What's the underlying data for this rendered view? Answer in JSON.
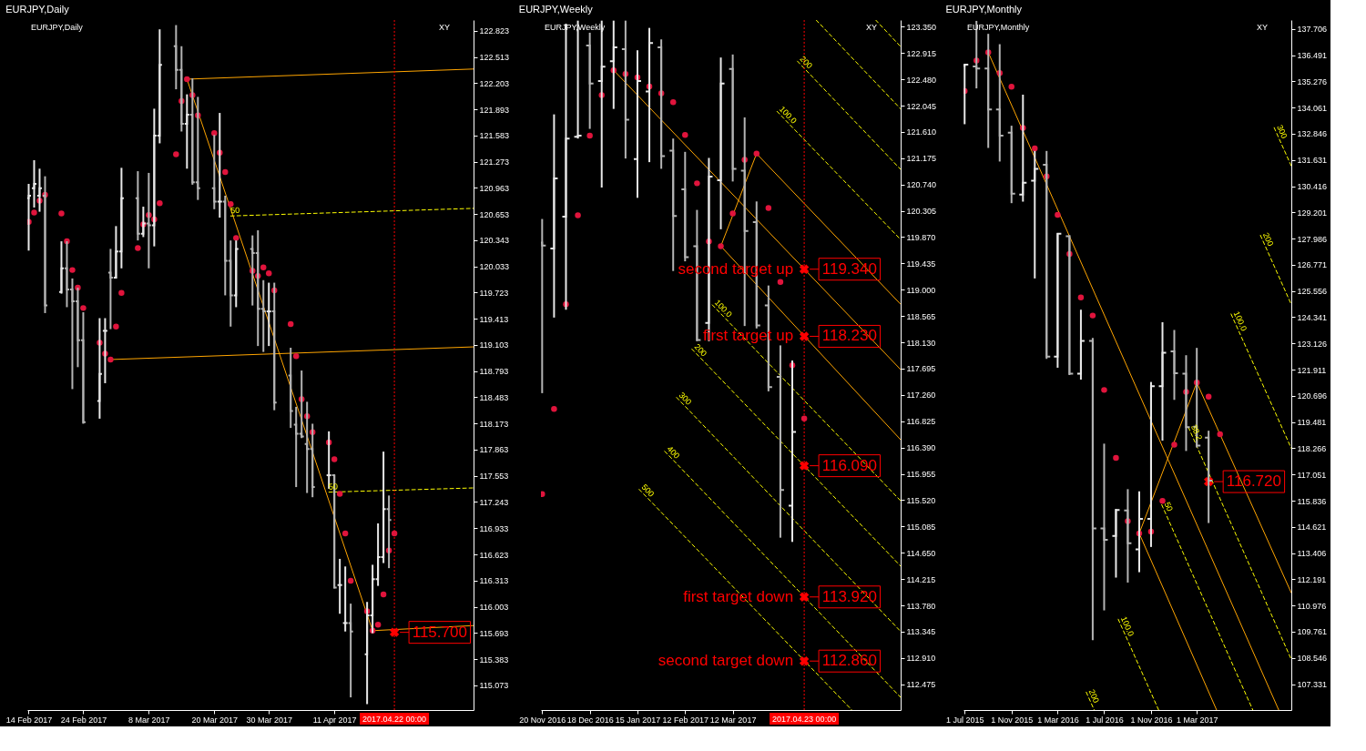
{
  "chart_data": [
    {
      "type": "candlestick",
      "title": "EURJPY,Daily",
      "colors": [
        "#e8e8e8",
        "#e8e8e8",
        "#e8e8e8",
        "#b4b4b4",
        "#e8e8e8",
        "#b4b4b4",
        "#b4b4b4",
        "#b4b4b4",
        "#b4b4b4",
        "#e8e8e8",
        "#e8e8e8",
        "#b4b4b4",
        "#e8e8e8",
        "#e8e8e8",
        "#b4b4b4",
        "#e8e8e8",
        "#b4b4b4",
        "#e8e8e8",
        "#e8e8e8",
        "#b4b4b4",
        "#b4b4b4",
        "#e8e8e8",
        "#b4b4b4",
        "#b4b4b4",
        "#b4b4b4",
        "#e8e8e8",
        "#b4b4b4",
        "#b4b4b4",
        "#e8e8e8",
        "#b4b4b4",
        "#b4b4b4",
        "#b4b4b4",
        "#e8e8e8",
        "#b4b4b4",
        "#b4b4b4",
        "#b4b4b4",
        "#b4b4b4",
        "#b4b4b4",
        "#b4b4b4",
        "#e8e8e8",
        "#b4b4b4",
        "#e8e8e8",
        "#e8e8e8",
        "#b4b4b4",
        "#e8e8e8",
        "#e8e8e8",
        "#e8e8e8",
        "#e8e8e8",
        "#b4b4b4"
      ],
      "x": [
        "2017-02-14",
        "2017-02-15",
        "2017-02-16",
        "2017-02-17",
        "2017-02-20",
        "2017-02-21",
        "2017-02-22",
        "2017-02-23",
        "2017-02-24",
        "2017-02-27",
        "2017-02-28",
        "2017-03-01",
        "2017-03-02",
        "2017-03-03",
        "2017-03-06",
        "2017-03-07",
        "2017-03-08",
        "2017-03-09",
        "2017-03-10",
        "2017-03-13",
        "2017-03-14",
        "2017-03-15",
        "2017-03-16",
        "2017-03-17",
        "2017-03-20",
        "2017-03-21",
        "2017-03-22",
        "2017-03-23",
        "2017-03-24",
        "2017-03-27",
        "2017-03-28",
        "2017-03-29",
        "2017-03-30",
        "2017-03-31",
        "2017-04-03",
        "2017-04-04",
        "2017-04-05",
        "2017-04-06",
        "2017-04-07",
        "2017-04-10",
        "2017-04-11",
        "2017-04-12",
        "2017-04-13",
        "2017-04-14",
        "2017-04-17",
        "2017-04-18",
        "2017-04-19",
        "2017-04-20",
        "2017-04-21"
      ],
      "ohlc": [
        [
          120.84,
          121.01,
          120.22,
          120.87
        ],
        [
          120.96,
          121.29,
          120.73,
          121.01
        ],
        [
          120.87,
          121.19,
          120.68,
          120.96
        ],
        [
          120.87,
          121.1,
          119.48,
          119.57
        ],
        [
          119.73,
          120.33,
          119.71,
          120.01
        ],
        [
          120.01,
          120.33,
          119.55,
          119.76
        ],
        [
          119.76,
          119.89,
          118.58,
          119.62
        ],
        [
          119.62,
          119.78,
          118.84,
          119.16
        ],
        [
          119.16,
          119.49,
          118.17,
          118.19
        ],
        [
          118.44,
          119.42,
          118.23,
          118.76
        ],
        [
          119.27,
          119.42,
          118.65,
          119.27
        ],
        [
          119.96,
          120.24,
          119.29,
          119.9
        ],
        [
          119.9,
          120.51,
          119.89,
          120.21
        ],
        [
          120.21,
          121.2,
          120.01,
          120.84
        ],
        [
          120.84,
          121.16,
          120.34,
          120.42
        ],
        [
          120.42,
          120.74,
          120.38,
          120.54
        ],
        [
          120.54,
          121.14,
          120.01,
          120.52
        ],
        [
          120.52,
          121.9,
          120.27,
          121.58
        ],
        [
          121.58,
          122.84,
          121.49,
          122.42
        ],
        [
          122.64,
          122.89,
          122.13,
          122.36
        ],
        [
          122.36,
          122.64,
          121.63,
          121.72
        ],
        [
          121.72,
          122.07,
          121.19,
          121.83
        ],
        [
          121.83,
          122.26,
          121.0,
          121.03
        ],
        [
          121.03,
          122.04,
          120.82,
          120.96
        ],
        [
          120.96,
          121.59,
          120.71,
          120.8
        ],
        [
          120.8,
          121.85,
          120.61,
          120.8
        ],
        [
          120.8,
          120.87,
          119.69,
          120.1
        ],
        [
          120.1,
          120.34,
          119.32,
          119.69
        ],
        [
          119.69,
          120.34,
          119.55,
          120.24
        ],
        [
          120.24,
          120.4,
          119.57,
          120.19
        ],
        [
          120.19,
          120.46,
          119.09,
          119.53
        ],
        [
          119.53,
          119.87,
          119.02,
          119.5
        ],
        [
          119.5,
          119.84,
          119.09,
          119.5
        ],
        [
          119.5,
          119.84,
          118.33,
          118.42
        ],
        [
          118.74,
          119.07,
          118.12,
          118.32
        ],
        [
          118.16,
          118.37,
          117.42,
          118.05
        ],
        [
          118.05,
          118.8,
          118.0,
          118.02
        ],
        [
          117.93,
          118.43,
          117.35,
          117.87
        ],
        [
          117.87,
          118.17,
          117.3,
          117.42
        ],
        [
          117.56,
          118.08,
          117.4,
          117.56
        ],
        [
          117.56,
          117.56,
          116.22,
          116.23
        ],
        [
          116.26,
          116.57,
          115.92,
          116.26
        ],
        [
          115.81,
          116.48,
          115.71,
          115.81
        ],
        [
          115.81,
          116.04,
          114.93,
          115.71
        ],
        [
          115.44,
          116.06,
          114.85,
          115.9
        ],
        [
          115.9,
          116.5,
          115.69,
          116.33
        ],
        [
          116.33,
          116.99,
          116.25,
          116.59
        ],
        [
          116.59,
          117.84,
          116.52,
          117.16
        ],
        [
          117.16,
          117.32,
          116.46,
          117.03
        ]
      ],
      "xlim": [
        "2017-02-13T18:00",
        "2017-05-06T12:00"
      ],
      "xticks": [
        {
          "value": "2017-02-14",
          "label": "14 Feb 2017"
        },
        {
          "value": "2017-02-24",
          "label": "24 Feb 2017"
        },
        {
          "value": "2017-03-08",
          "label": "8 Mar 2017"
        },
        {
          "value": "2017-03-20",
          "label": "20 Mar 2017"
        },
        {
          "value": "2017-03-30",
          "label": "30 Mar 2017"
        },
        {
          "value": "2017-04-11",
          "label": "11 Apr 2017"
        }
      ],
      "ylim": [
        114.78,
        122.95
      ],
      "yticks": [
        122.823,
        122.513,
        122.203,
        121.893,
        121.583,
        121.273,
        120.963,
        120.653,
        120.343,
        120.033,
        119.723,
        119.413,
        119.103,
        118.793,
        118.483,
        118.173,
        117.863,
        117.553,
        117.243,
        116.933,
        116.623,
        116.313,
        116.003,
        115.693,
        115.383,
        115.073
      ],
      "series": [
        {
          "type": "line",
          "color": "#ffa500",
          "x": [
            "2017-03-15",
            "2017-05-06T12:00"
          ],
          "values": [
            122.25,
            122.37
          ]
        },
        {
          "type": "line",
          "color": "#ffa500",
          "x": [
            "2017-03-01",
            "2017-05-06T12:00"
          ],
          "values": [
            118.93,
            119.08
          ]
        },
        {
          "type": "line",
          "color": "#ffa500",
          "x": [
            "2017-03-15",
            "2017-04-18"
          ],
          "values": [
            122.25,
            115.72
          ]
        },
        {
          "type": "line",
          "color": "#ffa500",
          "x": [
            "2017-04-18",
            "2017-05-06T12:00"
          ],
          "values": [
            115.72,
            115.78
          ]
        },
        {
          "type": "line",
          "color": "#ffff00",
          "line_style": "dashed",
          "name": "50",
          "x": [
            "2017-03-23",
            "2017-05-06T12:00"
          ],
          "values": [
            120.63,
            120.72
          ]
        },
        {
          "type": "line",
          "color": "#ffff00",
          "line_style": "dashed",
          "name": "50",
          "x": [
            "2017-04-10",
            "2017-05-06T12:00"
          ],
          "values": [
            117.36,
            117.41
          ]
        },
        {
          "type": "scatter",
          "color": "#e0143c",
          "marker": "circle",
          "x": [
            "2017-02-14",
            "2017-02-15",
            "2017-02-16",
            "2017-02-17",
            "2017-02-20",
            "2017-02-21",
            "2017-02-22",
            "2017-02-23",
            "2017-02-24",
            "2017-02-27",
            "2017-02-28",
            "2017-03-01",
            "2017-03-02",
            "2017-03-03",
            "2017-03-06",
            "2017-03-07",
            "2017-03-08",
            "2017-03-09",
            "2017-03-10",
            "2017-03-13",
            "2017-03-14",
            "2017-03-15",
            "2017-03-16",
            "2017-03-17",
            "2017-03-20",
            "2017-03-21",
            "2017-03-22",
            "2017-03-23",
            "2017-03-24",
            "2017-03-27",
            "2017-03-28",
            "2017-03-29",
            "2017-03-30",
            "2017-03-31",
            "2017-04-03",
            "2017-04-04",
            "2017-04-05",
            "2017-04-06",
            "2017-04-07",
            "2017-04-10",
            "2017-04-11",
            "2017-04-12",
            "2017-04-13",
            "2017-04-14",
            "2017-04-17",
            "2017-04-18",
            "2017-04-19",
            "2017-04-20",
            "2017-04-21",
            "2017-04-22"
          ],
          "values": [
            120.56,
            120.67,
            120.81,
            120.88,
            120.66,
            120.33,
            119.99,
            119.78,
            119.54,
            119.13,
            119.0,
            118.93,
            119.32,
            119.72,
            120.25,
            120.53,
            120.64,
            120.59,
            120.78,
            121.36,
            121.99,
            122.25,
            122.06,
            121.82,
            121.61,
            121.38,
            121.15,
            120.77,
            120.37,
            119.98,
            119.92,
            120.02,
            119.95,
            119.75,
            119.35,
            118.97,
            118.46,
            118.26,
            118.07,
            117.95,
            117.75,
            117.34,
            116.87,
            116.31,
            115.95,
            115.72,
            115.79,
            116.15,
            116.67,
            116.87
          ]
        },
        {
          "type": "scatter",
          "color": "#ff0000",
          "marker": "cross",
          "x": [
            "2017-04-22"
          ],
          "values": [
            115.7
          ],
          "value_labels": [
            "115.700"
          ]
        }
      ],
      "ref_lines": [
        {
          "axis": "x",
          "value": "2017-04-22",
          "label": "2017.04.22 00:00",
          "color": "#ff0000",
          "line_style": "dotted"
        }
      ],
      "annotations": [
        "EURJPY,Daily",
        "XY"
      ]
    },
    {
      "type": "candlestick",
      "title": "EURJPY,Weekly",
      "colors": [
        "#b4b4b4",
        "#e8e8e8",
        "#e8e8e8",
        "#e8e8e8",
        "#b4b4b4",
        "#e8e8e8",
        "#e8e8e8",
        "#b4b4b4",
        "#e8e8e8",
        "#e8e8e8",
        "#b4b4b4",
        "#b4b4b4",
        "#b4b4b4",
        "#b4b4b4",
        "#e8e8e8",
        "#e8e8e8",
        "#b4b4b4",
        "#b4b4b4",
        "#b4b4b4",
        "#b4b4b4",
        "#b4b4b4",
        "#e8e8e8"
      ],
      "x": [
        "2016-11-20",
        "2016-11-27",
        "2016-12-04",
        "2016-12-11",
        "2016-12-18",
        "2016-12-25",
        "2017-01-01",
        "2017-01-08",
        "2017-01-15",
        "2017-01-22",
        "2017-01-29",
        "2017-02-05",
        "2017-02-12",
        "2017-02-19",
        "2017-02-26",
        "2017-03-05",
        "2017-03-12",
        "2017-03-19",
        "2017-03-26",
        "2017-04-02",
        "2017-04-09",
        "2017-04-16"
      ],
      "ohlc": [
        [
          119.78,
          120.17,
          117.29,
          119.73
        ],
        [
          119.68,
          121.9,
          118.54,
          120.84
        ],
        [
          120.21,
          123.4,
          118.67,
          121.5
        ],
        [
          121.53,
          123.45,
          121.5,
          121.55
        ],
        [
          123.04,
          123.25,
          121.66,
          122.41
        ],
        [
          122.45,
          123.45,
          120.69,
          122.69
        ],
        [
          122.78,
          123.45,
          121.99,
          123.01
        ],
        [
          122.98,
          123.45,
          121.17,
          121.81
        ],
        [
          121.16,
          122.96,
          120.52,
          122.45
        ],
        [
          122.28,
          123.33,
          121.11,
          123.08
        ],
        [
          123.01,
          123.14,
          121.0,
          121.21
        ],
        [
          121.3,
          121.5,
          119.31,
          120.22
        ],
        [
          120.66,
          121.28,
          119.47,
          119.54
        ],
        [
          119.72,
          120.32,
          118.15,
          118.17
        ],
        [
          118.45,
          121.18,
          118.15,
          120.87
        ],
        [
          120.81,
          122.84,
          120.0,
          122.41
        ],
        [
          122.65,
          122.89,
          120.79,
          121.0
        ],
        [
          120.97,
          121.85,
          118.4,
          119.97
        ],
        [
          120.12,
          120.46,
          118.36,
          118.41
        ],
        [
          118.74,
          119.07,
          117.32,
          117.39
        ],
        [
          117.56,
          118.08,
          114.9,
          115.69
        ],
        [
          115.43,
          117.83,
          114.83,
          116.65
        ]
      ],
      "xlim": [
        "2016-11-19T07:00",
        "2017-06-18T16:00"
      ],
      "xticks": [
        {
          "value": "2016-11-20",
          "label": "20 Nov 2016"
        },
        {
          "value": "2016-12-18",
          "label": "18 Dec 2016"
        },
        {
          "value": "2017-01-15",
          "label": "15 Jan 2017"
        },
        {
          "value": "2017-02-12",
          "label": "12 Feb 2017"
        },
        {
          "value": "2017-03-12",
          "label": "12 Mar 2017"
        }
      ],
      "ylim": [
        112.05,
        123.46
      ],
      "yticks": [
        {
          "value": 123.35,
          "label": "123.350"
        },
        122.915,
        {
          "value": 122.48,
          "label": "122.480"
        },
        122.045,
        {
          "value": 121.61,
          "label": "121.610"
        },
        121.175,
        {
          "value": 120.74,
          "label": "120.740"
        },
        120.305,
        {
          "value": 119.87,
          "label": "119.870"
        },
        119.435,
        {
          "value": 119,
          "label": "119.000"
        },
        118.565,
        {
          "value": 118.13,
          "label": "118.130"
        },
        117.695,
        {
          "value": 117.26,
          "label": "117.260"
        },
        116.825,
        {
          "value": 116.39,
          "label": "116.390"
        },
        115.955,
        {
          "value": 115.52,
          "label": "115.520"
        },
        115.085,
        {
          "value": 114.65,
          "label": "114.650"
        },
        114.215,
        {
          "value": 113.78,
          "label": "113.780"
        },
        113.345,
        {
          "value": 112.91,
          "label": "112.910"
        },
        112.475
      ],
      "series": [
        {
          "type": "line",
          "color": "#ffa500",
          "x": [
            "2017-01-01",
            "2017-06-18T16:00"
          ],
          "values": [
            122.63,
            117.68
          ]
        },
        {
          "type": "line",
          "color": "#ffa500",
          "x": [
            "2017-03-26",
            "2017-06-18T16:00"
          ],
          "values": [
            121.25,
            118.76
          ]
        },
        {
          "type": "line",
          "color": "#ffa500",
          "x": [
            "2017-03-05",
            "2017-06-18T16:00"
          ],
          "values": [
            119.72,
            116.52
          ]
        },
        {
          "type": "line",
          "color": "#ffa500",
          "x": [
            "2017-03-05",
            "2017-03-26"
          ],
          "values": [
            119.72,
            121.25
          ]
        },
        {
          "type": "line",
          "color": "#ffff00",
          "line_style": "dashed",
          "name": "200",
          "x": [
            "2017-04-19",
            "2017-06-18T16:00"
          ],
          "values": [
            122.78,
            120.99
          ]
        },
        {
          "type": "line",
          "color": "#ffff00",
          "line_style": "dashed",
          "name": "100.0",
          "x": [
            "2017-04-07",
            "2017-06-18T16:00"
          ],
          "values": [
            121.95,
            119.83
          ]
        },
        {
          "type": "line",
          "color": "#ffff00",
          "line_style": "dashed",
          "x": [
            "2017-04-30",
            "2017-06-18T16:00"
          ],
          "values": [
            123.46,
            121.99
          ]
        },
        {
          "type": "line",
          "color": "#ffff00",
          "line_style": "dashed",
          "x": [
            "2017-06-04",
            "2017-06-18T16:00"
          ],
          "values": [
            123.46,
            123.02
          ]
        },
        {
          "type": "line",
          "color": "#ffff00",
          "line_style": "dashed",
          "name": "100.0",
          "x": [
            "2017-02-28",
            "2017-06-18T16:00"
          ],
          "values": [
            118.75,
            115.51
          ]
        },
        {
          "type": "line",
          "color": "#ffff00",
          "line_style": "dashed",
          "name": "200",
          "x": [
            "2017-02-16",
            "2017-06-18T16:00"
          ],
          "values": [
            118.02,
            114.43
          ]
        },
        {
          "type": "line",
          "color": "#ffff00",
          "line_style": "dashed",
          "name": "300",
          "x": [
            "2017-02-07",
            "2017-06-18T16:00"
          ],
          "values": [
            117.22,
            113.35
          ]
        },
        {
          "type": "line",
          "color": "#ffff00",
          "line_style": "dashed",
          "name": "400",
          "x": [
            "2017-01-31",
            "2017-06-18T16:00"
          ],
          "values": [
            116.33,
            112.26
          ]
        },
        {
          "type": "line",
          "color": "#ffff00",
          "line_style": "dashed",
          "name": "500",
          "x": [
            "2017-01-16",
            "2017-05-21"
          ],
          "values": [
            115.7,
            112.05
          ]
        },
        {
          "type": "scatter",
          "color": "#e0143c",
          "marker": "circle",
          "x": [
            "2016-11-20",
            "2016-11-27",
            "2016-12-04",
            "2016-12-11",
            "2016-12-18",
            "2016-12-25",
            "2017-01-01",
            "2017-01-08",
            "2017-01-15",
            "2017-01-22",
            "2017-01-29",
            "2017-02-05",
            "2017-02-12",
            "2017-02-19",
            "2017-02-26",
            "2017-03-05",
            "2017-03-12",
            "2017-03-19",
            "2017-03-26",
            "2017-04-02",
            "2017-04-09",
            "2017-04-16",
            "2017-04-23"
          ],
          "values": [
            115.62,
            117.03,
            118.76,
            120.23,
            121.55,
            122.22,
            122.63,
            122.57,
            122.51,
            122.36,
            122.25,
            122.1,
            121.56,
            120.76,
            119.8,
            119.72,
            120.26,
            121.15,
            121.25,
            120.35,
            119.13,
            117.75,
            116.87
          ]
        },
        {
          "type": "scatter",
          "color": "#ff0000",
          "marker": "cross",
          "x": [
            "2017-04-23",
            "2017-04-23",
            "2017-04-23",
            "2017-04-23",
            "2017-04-23"
          ],
          "values": [
            119.34,
            118.23,
            116.09,
            113.92,
            112.86
          ],
          "value_labels": [
            "119.340",
            "118.230",
            "116.090",
            "113.920",
            "112.860"
          ]
        }
      ],
      "ref_lines": [
        {
          "axis": "x",
          "value": "2017-04-23",
          "label": "2017.04.23 00:00",
          "color": "#ff0000",
          "line_style": "dotted"
        }
      ],
      "annotations": [
        "EURJPY,Weekly",
        "XY",
        {
          "text": "second target up",
          "x": "2017-04-23",
          "y": 119.34
        },
        {
          "text": "first target up",
          "x": "2017-04-23",
          "y": 118.23
        },
        {
          "text": "first target down",
          "x": "2017-04-23",
          "y": 113.92
        },
        {
          "text": "second target down",
          "x": "2017-04-23",
          "y": 112.86
        }
      ]
    },
    {
      "type": "candlestick",
      "title": "EURJPY,Monthly",
      "colors": [
        "#e8e8e8",
        "#b4b4b4",
        "#b4b4b4",
        "#b4b4b4",
        "#b4b4b4",
        "#e8e8e8",
        "#e8e8e8",
        "#b4b4b4",
        "#e8e8e8",
        "#b4b4b4",
        "#e8e8e8",
        "#b4b4b4",
        "#b4b4b4",
        "#e8e8e8",
        "#b4b4b4",
        "#e8e8e8",
        "#e8e8e8",
        "#e8e8e8",
        "#b4b4b4",
        "#b4b4b4",
        "#b4b4b4",
        "#b4b4b4"
      ],
      "x": [
        "2015-07-01",
        "2015-08-01",
        "2015-09-01",
        "2015-10-01",
        "2015-11-01",
        "2015-12-01",
        "2016-01-01",
        "2016-02-01",
        "2016-03-01",
        "2016-04-01",
        "2016-05-01",
        "2016-06-01",
        "2016-07-01",
        "2016-08-01",
        "2016-09-01",
        "2016-10-01",
        "2016-11-01",
        "2016-12-01",
        "2017-01-01",
        "2017-02-01",
        "2017-03-01",
        "2017-04-01"
      ],
      "ohlc": [
        [
          136.0,
          136.08,
          133.29,
          136.05
        ],
        [
          135.97,
          138.08,
          134.95,
          135.87
        ],
        [
          135.87,
          137.48,
          132.19,
          133.97
        ],
        [
          133.97,
          137.0,
          131.56,
          132.76
        ],
        [
          132.9,
          133.22,
          129.63,
          130.07
        ],
        [
          130.03,
          134.66,
          129.7,
          130.58
        ],
        [
          130.67,
          132.05,
          126.14,
          131.22
        ],
        [
          131.41,
          132.05,
          122.41,
          122.52
        ],
        [
          122.52,
          128.24,
          122.0,
          128.21
        ],
        [
          128.1,
          128.14,
          121.66,
          121.72
        ],
        [
          121.72,
          124.69,
          121.45,
          123.24
        ],
        [
          123.24,
          123.38,
          109.37,
          114.55
        ],
        [
          114.55,
          118.48,
          110.75,
          114.02
        ],
        [
          114.2,
          115.45,
          112.27,
          115.4
        ],
        [
          115.38,
          116.37,
          112.04,
          113.86
        ],
        [
          113.58,
          116.27,
          112.52,
          114.99
        ],
        [
          114.99,
          121.34,
          113.69,
          121.14
        ],
        [
          121.14,
          124.11,
          118.62,
          122.69
        ],
        [
          122.76,
          123.75,
          120.51,
          121.75
        ],
        [
          121.72,
          122.58,
          118.14,
          119.24
        ],
        [
          119.27,
          122.92,
          118.3,
          118.39
        ],
        [
          118.76,
          119.08,
          114.8,
          116.76
        ]
      ],
      "xlim": [
        "2015-06-28",
        "2017-11-04"
      ],
      "xticks": [
        {
          "value": "2015-07-01",
          "label": "1 Jul 2015"
        },
        {
          "value": "2015-11-01",
          "label": "1 Nov 2015"
        },
        {
          "value": "2016-03-01",
          "label": "1 Mar 2016"
        },
        {
          "value": "2016-07-01",
          "label": "1 Jul 2016"
        },
        {
          "value": "2016-11-01",
          "label": "1 Nov 2016"
        },
        {
          "value": "2017-03-01",
          "label": "1 Mar 2017"
        }
      ],
      "ylim": [
        106.13,
        138.12
      ],
      "yticks": [
        137.706,
        136.491,
        135.276,
        134.061,
        132.846,
        131.631,
        130.416,
        129.201,
        127.986,
        126.771,
        125.556,
        124.341,
        123.126,
        121.911,
        120.696,
        119.481,
        118.266,
        117.051,
        115.836,
        114.621,
        113.406,
        112.191,
        110.976,
        109.761,
        108.546,
        107.331
      ],
      "series": [
        {
          "type": "line",
          "color": "#ffa500",
          "x": [
            "2015-09-01",
            "2017-10-02"
          ],
          "values": [
            136.62,
            106.13
          ]
        },
        {
          "type": "line",
          "color": "#ffa500",
          "x": [
            "2016-10-01",
            "2017-04-22"
          ],
          "values": [
            114.32,
            106.13
          ]
        },
        {
          "type": "line",
          "color": "#ffa500",
          "x": [
            "2017-03-01",
            "2017-11-04"
          ],
          "values": [
            121.31,
            111.56
          ]
        },
        {
          "type": "line",
          "color": "#ffa500",
          "x": [
            "2016-10-01",
            "2017-03-01"
          ],
          "values": [
            114.32,
            121.31
          ]
        },
        {
          "type": "line",
          "color": "#ffff00",
          "line_style": "dashed",
          "name": "100.0",
          "x": [
            "2017-05-30",
            "2017-11-04"
          ],
          "values": [
            124.49,
            118.26
          ]
        },
        {
          "type": "line",
          "color": "#ffff00",
          "line_style": "dashed",
          "name": "200",
          "x": [
            "2017-08-15",
            "2017-11-04"
          ],
          "values": [
            128.14,
            124.93
          ]
        },
        {
          "type": "line",
          "color": "#ffff00",
          "line_style": "dashed",
          "name": "300",
          "x": [
            "2017-09-20",
            "2017-11-04"
          ],
          "values": [
            133.13,
            131.35
          ]
        },
        {
          "type": "line",
          "color": "#ffff00",
          "line_style": "dashed",
          "name": "100.0",
          "x": [
            "2016-08-07",
            "2016-11-21"
          ],
          "values": [
            110.34,
            106.13
          ]
        },
        {
          "type": "line",
          "color": "#ffff00",
          "line_style": "dashed",
          "name": "200",
          "x": [
            "2016-05-15",
            "2016-06-05"
          ],
          "values": [
            106.96,
            106.13
          ]
        },
        {
          "type": "line",
          "color": "#ffff00",
          "line_style": "dashed",
          "name": "50",
          "x": [
            "2016-11-29",
            "2017-07-26"
          ],
          "values": [
            115.65,
            106.13
          ]
        },
        {
          "type": "line",
          "color": "#ffff00",
          "line_style": "dashed",
          "name": "38.2",
          "x": [
            "2017-02-07",
            "2017-11-04"
          ],
          "values": [
            119.24,
            108.47
          ]
        },
        {
          "type": "scatter",
          "color": "#e0143c",
          "marker": "circle",
          "x": [
            "2015-07-01",
            "2015-08-01",
            "2015-09-01",
            "2015-10-01",
            "2015-11-01",
            "2015-12-01",
            "2016-01-01",
            "2016-02-01",
            "2016-03-01",
            "2016-04-01",
            "2016-05-01",
            "2016-06-01",
            "2016-07-01",
            "2016-08-01",
            "2016-09-01",
            "2016-10-01",
            "2016-11-01",
            "2016-12-01",
            "2017-01-01",
            "2017-02-01",
            "2017-03-01",
            "2017-04-01",
            "2017-05-01"
          ],
          "values": [
            134.83,
            136.24,
            136.62,
            135.66,
            135.03,
            133.12,
            132.17,
            130.87,
            129.09,
            127.27,
            125.26,
            124.42,
            120.97,
            117.82,
            114.89,
            114.32,
            114.4,
            115.83,
            118.43,
            120.88,
            121.31,
            120.66,
            118.92
          ]
        },
        {
          "type": "scatter",
          "color": "#ff0000",
          "marker": "cross",
          "x": [
            "2017-04-01"
          ],
          "values": [
            116.72
          ],
          "value_labels": [
            "116.720"
          ]
        }
      ],
      "annotations": [
        "EURJPY,Monthly",
        "XY"
      ]
    }
  ]
}
